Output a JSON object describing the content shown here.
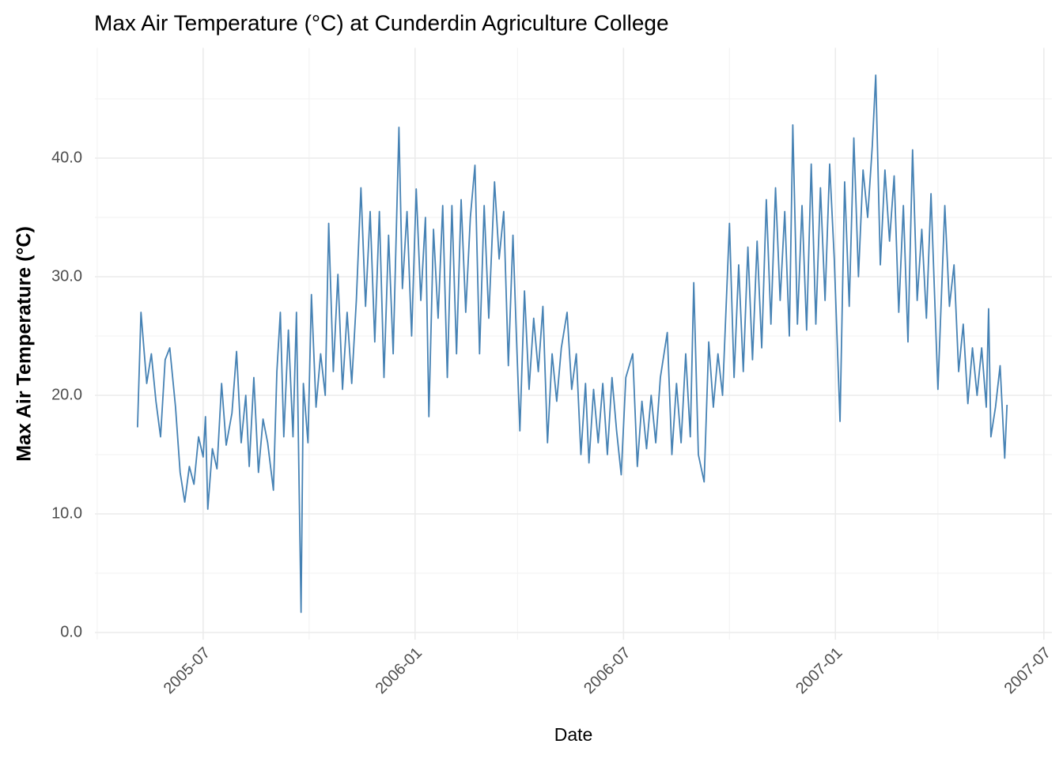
{
  "chart_data": {
    "type": "line",
    "title": "Max Air Temperature (°C) at Cunderdin Agriculture College",
    "x_label": "Date",
    "y_label": "Max Air Temperature (°C)",
    "color": "#4682b4",
    "grid": true,
    "xlim": [
      "2005-03-29",
      "2007-07-08"
    ],
    "xticks": [
      "2005-07",
      "2006-01",
      "2006-07",
      "2007-01",
      "2007-07"
    ],
    "ylim": [
      -0.6,
      49.3
    ],
    "yticks": [
      {
        "value": 0,
        "label": "0.0"
      },
      {
        "value": 10,
        "label": "10.0"
      },
      {
        "value": 20,
        "label": "20.0"
      },
      {
        "value": 30,
        "label": "30.0"
      },
      {
        "value": 40,
        "label": "40.0"
      }
    ],
    "x": [
      "2005-05-05",
      "2005-05-08",
      "2005-05-13",
      "2005-05-17",
      "2005-05-21",
      "2005-05-25",
      "2005-05-29",
      "2005-06-02",
      "2005-06-07",
      "2005-06-11",
      "2005-06-15",
      "2005-06-19",
      "2005-06-23",
      "2005-06-27",
      "2005-07-01",
      "2005-07-03",
      "2005-07-05",
      "2005-07-09",
      "2005-07-13",
      "2005-07-17",
      "2005-07-21",
      "2005-07-26",
      "2005-07-30",
      "2005-08-03",
      "2005-08-07",
      "2005-08-10",
      "2005-08-14",
      "2005-08-18",
      "2005-08-22",
      "2005-08-26",
      "2005-08-31",
      "2005-09-03",
      "2005-09-06",
      "2005-09-09",
      "2005-09-13",
      "2005-09-17",
      "2005-09-20",
      "2005-09-24",
      "2005-09-26",
      "2005-09-30",
      "2005-10-03",
      "2005-10-07",
      "2005-10-11",
      "2005-10-15",
      "2005-10-18",
      "2005-10-22",
      "2005-10-26",
      "2005-10-30",
      "2005-11-03",
      "2005-11-07",
      "2005-11-11",
      "2005-11-15",
      "2005-11-19",
      "2005-11-23",
      "2005-11-27",
      "2005-12-01",
      "2005-12-05",
      "2005-12-09",
      "2005-12-13",
      "2005-12-18",
      "2005-12-21",
      "2005-12-25",
      "2005-12-29",
      "2006-01-02",
      "2006-01-06",
      "2006-01-10",
      "2006-01-13",
      "2006-01-17",
      "2006-01-21",
      "2006-01-25",
      "2006-01-29",
      "2006-02-02",
      "2006-02-06",
      "2006-02-10",
      "2006-02-14",
      "2006-02-18",
      "2006-02-22",
      "2006-02-26",
      "2006-03-02",
      "2006-03-06",
      "2006-03-11",
      "2006-03-15",
      "2006-03-19",
      "2006-03-23",
      "2006-03-27",
      "2006-03-30",
      "2006-04-02",
      "2006-04-06",
      "2006-04-10",
      "2006-04-14",
      "2006-04-18",
      "2006-04-22",
      "2006-04-26",
      "2006-04-30",
      "2006-05-04",
      "2006-05-08",
      "2006-05-13",
      "2006-05-17",
      "2006-05-21",
      "2006-05-25",
      "2006-05-29",
      "2006-06-01",
      "2006-06-05",
      "2006-06-09",
      "2006-06-13",
      "2006-06-17",
      "2006-06-21",
      "2006-06-25",
      "2006-06-29",
      "2006-07-03",
      "2006-07-09",
      "2006-07-13",
      "2006-07-17",
      "2006-07-21",
      "2006-07-25",
      "2006-07-29",
      "2006-08-02",
      "2006-08-08",
      "2006-08-12",
      "2006-08-16",
      "2006-08-20",
      "2006-08-24",
      "2006-08-28",
      "2006-08-31",
      "2006-09-04",
      "2006-09-09",
      "2006-09-13",
      "2006-09-17",
      "2006-09-21",
      "2006-09-25",
      "2006-10-01",
      "2006-10-05",
      "2006-10-09",
      "2006-10-13",
      "2006-10-17",
      "2006-10-21",
      "2006-10-25",
      "2006-10-29",
      "2006-11-02",
      "2006-11-06",
      "2006-11-10",
      "2006-11-14",
      "2006-11-18",
      "2006-11-22",
      "2006-11-25",
      "2006-11-29",
      "2006-12-03",
      "2006-12-07",
      "2006-12-11",
      "2006-12-15",
      "2006-12-19",
      "2006-12-23",
      "2006-12-27",
      "2006-12-31",
      "2007-01-05",
      "2007-01-09",
      "2007-01-13",
      "2007-01-17",
      "2007-01-21",
      "2007-01-25",
      "2007-01-29",
      "2007-02-02",
      "2007-02-05",
      "2007-02-09",
      "2007-02-13",
      "2007-02-17",
      "2007-02-21",
      "2007-02-25",
      "2007-03-01",
      "2007-03-05",
      "2007-03-09",
      "2007-03-13",
      "2007-03-17",
      "2007-03-21",
      "2007-03-25",
      "2007-03-31",
      "2007-04-06",
      "2007-04-10",
      "2007-04-14",
      "2007-04-18",
      "2007-04-22",
      "2007-04-26",
      "2007-04-30",
      "2007-05-04",
      "2007-05-08",
      "2007-05-12",
      "2007-05-14",
      "2007-05-16",
      "2007-05-20",
      "2007-05-24",
      "2007-05-28",
      "2007-05-30"
    ],
    "values": [
      17.3,
      27.0,
      21.0,
      23.5,
      19.5,
      16.5,
      23.0,
      24.0,
      19.0,
      13.5,
      11.0,
      14.0,
      12.5,
      16.5,
      14.8,
      18.2,
      10.4,
      15.5,
      13.8,
      21.0,
      15.8,
      18.5,
      23.7,
      16.0,
      20.0,
      14.0,
      21.5,
      13.5,
      18.0,
      16.0,
      12.0,
      22.0,
      27.0,
      16.5,
      25.5,
      16.5,
      27.0,
      1.7,
      21.0,
      16.0,
      28.5,
      19.0,
      23.5,
      20.0,
      34.5,
      22.0,
      30.2,
      20.5,
      27.0,
      21.0,
      28.0,
      37.5,
      27.5,
      35.5,
      24.5,
      35.5,
      21.5,
      33.5,
      23.5,
      42.6,
      29.0,
      35.5,
      25.0,
      37.4,
      28.0,
      35.0,
      18.2,
      34.0,
      26.5,
      36.0,
      21.5,
      36.0,
      23.5,
      36.5,
      27.0,
      35.0,
      39.4,
      23.5,
      36.0,
      26.5,
      38.0,
      31.5,
      35.5,
      22.5,
      33.5,
      25.0,
      17.0,
      28.8,
      20.5,
      26.5,
      22.0,
      27.5,
      16.0,
      23.5,
      19.5,
      24.0,
      27.0,
      20.5,
      23.5,
      15.0,
      21.0,
      14.3,
      20.5,
      16.0,
      21.0,
      15.0,
      21.5,
      17.0,
      13.3,
      21.5,
      23.5,
      14.0,
      19.5,
      15.5,
      20.0,
      16.0,
      21.5,
      25.3,
      15.0,
      21.0,
      16.0,
      23.5,
      16.5,
      29.5,
      15.0,
      12.7,
      24.5,
      19.0,
      23.5,
      20.0,
      34.5,
      21.5,
      31.0,
      22.0,
      32.5,
      23.0,
      33.0,
      24.0,
      36.5,
      26.0,
      37.5,
      28.0,
      35.5,
      25.0,
      42.8,
      26.0,
      36.0,
      25.5,
      39.5,
      26.0,
      37.5,
      28.0,
      39.5,
      31.5,
      17.8,
      38.0,
      27.5,
      41.7,
      30.0,
      39.0,
      35.0,
      41.0,
      47.0,
      31.0,
      39.0,
      33.0,
      38.5,
      27.0,
      36.0,
      24.5,
      40.7,
      28.0,
      34.0,
      26.5,
      37.0,
      20.5,
      36.0,
      27.5,
      31.0,
      22.0,
      26.0,
      19.3,
      24.0,
      20.0,
      24.0,
      19.0,
      27.3,
      16.5,
      19.0,
      22.5,
      14.7,
      19.2
    ]
  }
}
